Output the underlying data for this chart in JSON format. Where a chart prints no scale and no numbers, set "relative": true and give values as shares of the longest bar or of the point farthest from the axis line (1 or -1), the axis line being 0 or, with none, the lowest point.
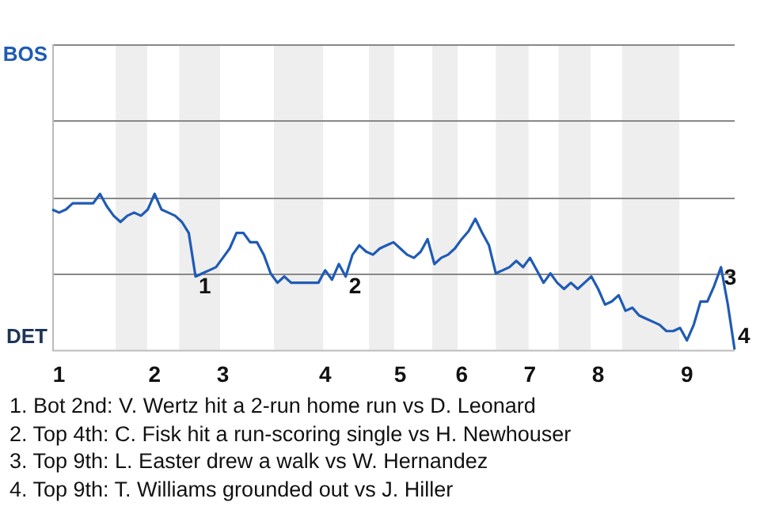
{
  "chart_data": {
    "type": "line",
    "relative": true,
    "categories": [
      null,
      "1",
      null,
      null,
      null,
      null,
      null,
      null,
      null,
      null,
      null,
      null,
      null,
      null,
      null,
      "2",
      null,
      null,
      null,
      null,
      null,
      null,
      null,
      null,
      null,
      "3",
      null,
      null,
      null,
      null,
      null,
      null,
      null,
      null,
      null,
      null,
      null,
      null,
      null,
      null,
      "4",
      null,
      null,
      null,
      null,
      null,
      null,
      null,
      null,
      null,
      null,
      "5",
      null,
      null,
      null,
      null,
      null,
      null,
      null,
      null,
      "6",
      null,
      null,
      null,
      null,
      null,
      null,
      null,
      null,
      null,
      "7",
      null,
      null,
      null,
      null,
      null,
      null,
      null,
      null,
      null,
      "8",
      null,
      null,
      null,
      null,
      null,
      null,
      null,
      null,
      null,
      null,
      null,
      null,
      "9",
      null,
      null,
      null,
      null,
      null,
      null,
      null
    ],
    "series": [
      {
        "color": "#1f5bb5",
        "values": [
          0.9,
          0.88,
          0.9,
          0.94,
          0.94,
          0.94,
          0.94,
          1,
          0.92,
          0.86,
          0.82,
          0.86,
          0.88,
          0.86,
          0.9,
          1,
          0.9,
          0.88,
          0.86,
          0.82,
          0.75,
          0.47,
          0.49,
          0.51,
          0.53,
          0.59,
          0.65,
          0.75,
          0.75,
          0.69,
          0.69,
          0.61,
          0.49,
          0.43,
          0.47,
          0.43,
          0.43,
          0.43,
          0.43,
          0.43,
          0.51,
          0.45,
          0.55,
          0.47,
          0.61,
          0.67,
          0.63,
          0.61,
          0.65,
          0.67,
          0.69,
          0.65,
          0.61,
          0.59,
          0.63,
          0.71,
          0.55,
          0.59,
          0.61,
          0.65,
          0.71,
          0.76,
          0.84,
          0.75,
          0.67,
          0.49,
          0.51,
          0.53,
          0.57,
          0.53,
          0.59,
          0.51,
          0.43,
          0.49,
          0.43,
          0.39,
          0.43,
          0.39,
          0.43,
          0.47,
          0.39,
          0.29,
          0.31,
          0.35,
          0.25,
          0.27,
          0.22,
          0.2,
          0.18,
          0.16,
          0.12,
          0.12,
          0.14,
          0.06,
          0.16,
          0.31,
          0.31,
          0.41,
          0.53,
          0.29,
          0
        ]
      }
    ],
    "grid": false,
    "legend": false,
    "marker": "none",
    "ref_lines": [
      {
        "axis": "y",
        "value": 0.49,
        "color": "#888888"
      },
      {
        "axis": "y",
        "value": 0.98,
        "color": "#888888"
      },
      {
        "axis": "y",
        "value": 1.47,
        "color": "#888888"
      },
      {
        "axis": "y",
        "value": 1.96,
        "color": "#888888"
      }
    ],
    "annotations": [
      "BOS",
      "DET",
      "1",
      "2",
      "3",
      "4",
      "1. Bot 2nd: V. Wertz hit a 2-run home run vs D. Leonard",
      "2. Top 4th: C. Fisk hit a run-scoring single vs H. Newhouser",
      "3. Top 9th: L. Easter drew a walk vs W. Hernandez",
      "4. Top 9th: T. Williams grounded out vs J. Hiller"
    ]
  }
}
